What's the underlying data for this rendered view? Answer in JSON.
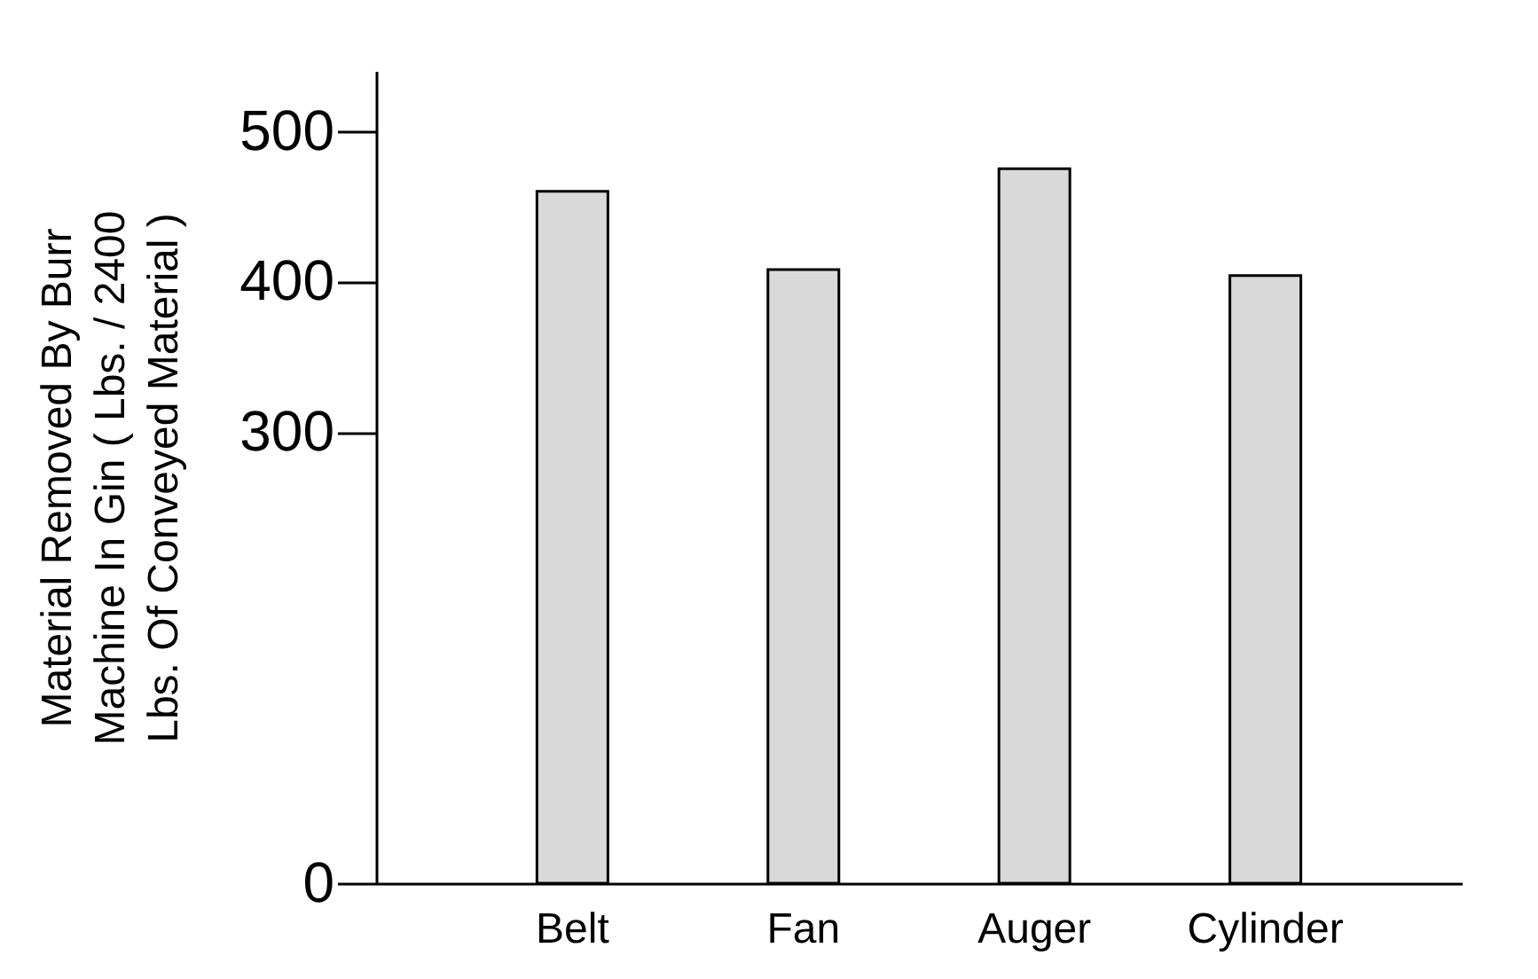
{
  "chart_data": {
    "type": "bar",
    "ylabel": "Material Removed By Burr\nMachine In Gin ( Lbs. / 2400\nLbs. Of Conveyed Material )",
    "categories": [
      "Belt",
      "Fan",
      "Auger",
      "Cylinder"
    ],
    "values": [
      460,
      408,
      475,
      404
    ],
    "color": "#d9d9d9",
    "ylim": [
      0,
      540
    ],
    "yticks": [
      0,
      300,
      400,
      500
    ],
    "grid": false
  }
}
